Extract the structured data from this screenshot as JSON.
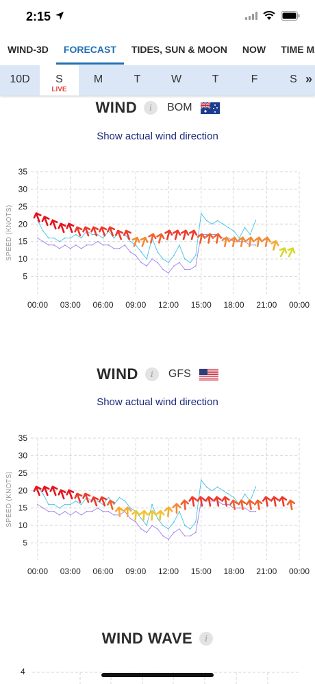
{
  "status": {
    "time": "2:15"
  },
  "tabs": [
    {
      "label": "WIND-3D",
      "active": false
    },
    {
      "label": "FORECAST",
      "active": true
    },
    {
      "label": "TIDES, SUN & MOON",
      "active": false
    },
    {
      "label": "NOW",
      "active": false
    },
    {
      "label": "TIME MAC",
      "active": false
    }
  ],
  "days": {
    "items": [
      {
        "label": "10D",
        "live": "",
        "active": false
      },
      {
        "label": "S",
        "live": "LIVE",
        "active": true
      },
      {
        "label": "M",
        "live": "",
        "active": false
      },
      {
        "label": "T",
        "live": "",
        "active": false
      },
      {
        "label": "W",
        "live": "",
        "active": false
      },
      {
        "label": "T",
        "live": "",
        "active": false
      },
      {
        "label": "F",
        "live": "",
        "active": false
      },
      {
        "label": "S",
        "live": "",
        "active": false
      }
    ],
    "more": "»"
  },
  "section1": {
    "title": "WIND",
    "info": "i",
    "model": "BOM",
    "link": "Show actual wind direction"
  },
  "section2": {
    "title": "WIND",
    "info": "i",
    "model": "GFS",
    "link": "Show actual wind direction"
  },
  "section3": {
    "title": "WIND WAVE",
    "info": "i",
    "first_tick": "4"
  },
  "chart_data": [
    {
      "type": "line",
      "model": "BOM",
      "ylabel": "SPEED (KNOTS)",
      "ylim": [
        0,
        35
      ],
      "yticks": [
        5,
        10,
        15,
        20,
        25,
        30,
        35
      ],
      "xticks": [
        "00:00",
        "03:00",
        "06:00",
        "09:00",
        "12:00",
        "15:00",
        "18:00",
        "21:00",
        "00:00"
      ],
      "grid": true,
      "series": [
        {
          "kind": "gust",
          "color": "#55c6e6",
          "x": [
            0,
            0.5,
            1,
            1.5,
            2,
            2.5,
            3,
            3.5,
            4,
            4.5,
            5,
            5.5,
            6,
            6.5,
            7,
            7.5,
            8,
            8.5,
            9,
            9.5,
            10,
            10.5,
            11,
            11.5,
            12,
            12.5,
            13,
            13.5,
            14,
            14.5,
            15,
            15.5,
            16,
            16.5,
            17,
            17.5,
            18,
            18.5,
            19,
            19.5,
            20
          ],
          "values": [
            21,
            18,
            16,
            16,
            15,
            16,
            16,
            17,
            16,
            18,
            17,
            17,
            16,
            18,
            16,
            18,
            17,
            15,
            14,
            12,
            10,
            16,
            12,
            10,
            9,
            11,
            14,
            10,
            9,
            11,
            23,
            21,
            20,
            21,
            20,
            19,
            18,
            16,
            19,
            17,
            21
          ]
        },
        {
          "kind": "mean",
          "color": "#a78bf0",
          "x": [
            0,
            0.5,
            1,
            1.5,
            2,
            2.5,
            3,
            3.5,
            4,
            4.5,
            5,
            5.5,
            6,
            6.5,
            7,
            7.5,
            8,
            8.5,
            9,
            9.5,
            10,
            10.5,
            11,
            11.5,
            12,
            12.5,
            13,
            13.5,
            14,
            14.5,
            15,
            15.5,
            16,
            16.5,
            17,
            17.5,
            18,
            18.5,
            19,
            19.5,
            20
          ],
          "values": [
            16,
            15,
            14,
            14,
            13,
            14,
            13,
            14,
            13,
            14,
            14,
            15,
            14,
            14,
            13,
            13,
            14,
            12,
            11,
            9,
            8,
            10,
            9,
            7,
            6,
            8,
            9,
            7,
            7,
            8,
            17,
            17,
            17,
            17,
            16,
            16,
            15,
            15,
            15,
            14,
            14
          ]
        }
      ],
      "wind_direction": {
        "x": [
          0,
          0.75,
          1.5,
          2.25,
          3,
          3.75,
          4.5,
          5.25,
          6,
          6.75,
          7.5,
          8.25,
          9,
          9.75,
          10.5,
          11.25,
          12,
          12.75,
          13.5,
          14.25,
          15,
          15.75,
          16.5,
          17.25,
          18,
          18.75,
          19.5,
          20.25,
          21,
          21.75,
          22.5,
          23.25
        ],
        "speed": [
          22,
          21,
          20,
          19,
          19,
          18,
          18,
          18,
          18,
          18,
          17,
          17,
          15,
          15,
          16,
          16,
          17,
          17,
          17,
          17,
          16,
          16,
          16,
          15,
          15,
          15,
          15,
          15,
          15,
          14,
          12,
          12
        ],
        "direction_deg": [
          340,
          340,
          340,
          340,
          340,
          340,
          340,
          340,
          340,
          340,
          340,
          340,
          20,
          20,
          15,
          15,
          15,
          15,
          15,
          15,
          10,
          10,
          10,
          10,
          10,
          10,
          10,
          10,
          10,
          15,
          25,
          25
        ]
      }
    },
    {
      "type": "line",
      "model": "GFS",
      "ylabel": "SPEED (KNOTS)",
      "ylim": [
        0,
        35
      ],
      "yticks": [
        5,
        10,
        15,
        20,
        25,
        30,
        35
      ],
      "xticks": [
        "00:00",
        "03:00",
        "06:00",
        "09:00",
        "12:00",
        "15:00",
        "18:00",
        "21:00",
        "00:00"
      ],
      "grid": true,
      "series": [
        {
          "kind": "gust",
          "color": "#55c6e6",
          "x": [
            0,
            0.5,
            1,
            1.5,
            2,
            2.5,
            3,
            3.5,
            4,
            4.5,
            5,
            5.5,
            6,
            6.5,
            7,
            7.5,
            8,
            8.5,
            9,
            9.5,
            10,
            10.5,
            11,
            11.5,
            12,
            12.5,
            13,
            13.5,
            14,
            14.5,
            15,
            15.5,
            16,
            16.5,
            17,
            17.5,
            18,
            18.5,
            19,
            19.5,
            20
          ],
          "values": [
            21,
            19,
            16,
            16,
            15,
            16,
            16,
            17,
            16,
            18,
            17,
            17,
            16,
            18,
            16,
            18,
            17,
            15,
            14,
            12,
            10,
            16,
            12,
            10,
            9,
            11,
            14,
            10,
            9,
            11,
            23,
            21,
            20,
            21,
            20,
            19,
            18,
            16,
            19,
            17,
            21
          ]
        },
        {
          "kind": "mean",
          "color": "#a78bf0",
          "x": [
            0,
            0.5,
            1,
            1.5,
            2,
            2.5,
            3,
            3.5,
            4,
            4.5,
            5,
            5.5,
            6,
            6.5,
            7,
            7.5,
            8,
            8.5,
            9,
            9.5,
            10,
            10.5,
            11,
            11.5,
            12,
            12.5,
            13,
            13.5,
            14,
            14.5,
            15,
            15.5,
            16,
            16.5,
            17,
            17.5,
            18,
            18.5,
            19,
            19.5,
            20
          ],
          "values": [
            16,
            15,
            14,
            14,
            13,
            14,
            13,
            14,
            13,
            14,
            14,
            15,
            14,
            14,
            13,
            13,
            14,
            12,
            11,
            9,
            8,
            10,
            9,
            7,
            6,
            8,
            9,
            7,
            7,
            8,
            17,
            17,
            17,
            17,
            16,
            16,
            15,
            15,
            15,
            14,
            14
          ]
        }
      ],
      "wind_direction": {
        "x": [
          0,
          0.75,
          1.5,
          2.25,
          3,
          3.75,
          4.5,
          5.25,
          6,
          6.75,
          7.5,
          8.25,
          9,
          9.75,
          10.5,
          11.25,
          12,
          12.75,
          13.5,
          14.25,
          15,
          15.75,
          16.5,
          17.25,
          18,
          18.75,
          19.5,
          20.25,
          21,
          21.75,
          22.5,
          23.25
        ],
        "speed": [
          20,
          20,
          20,
          19,
          19,
          18,
          18,
          17,
          17,
          16,
          14,
          14,
          13,
          13,
          13,
          13,
          14,
          15,
          16,
          17,
          17,
          17,
          17,
          17,
          16,
          16,
          16,
          16,
          17,
          17,
          17,
          16
        ],
        "direction_deg": [
          340,
          340,
          340,
          340,
          340,
          340,
          340,
          340,
          340,
          345,
          355,
          0,
          5,
          5,
          5,
          5,
          5,
          0,
          355,
          350,
          350,
          350,
          350,
          350,
          350,
          350,
          350,
          350,
          350,
          350,
          350,
          350
        ]
      }
    }
  ],
  "colors": {
    "accent": "#1f6fb5",
    "day_bar": "#dbe7f6",
    "live": "#e0483c",
    "link": "#1b2a7a",
    "gust": "#55c6e6",
    "mean": "#a78bf0",
    "grid": "#d6d6d6"
  }
}
